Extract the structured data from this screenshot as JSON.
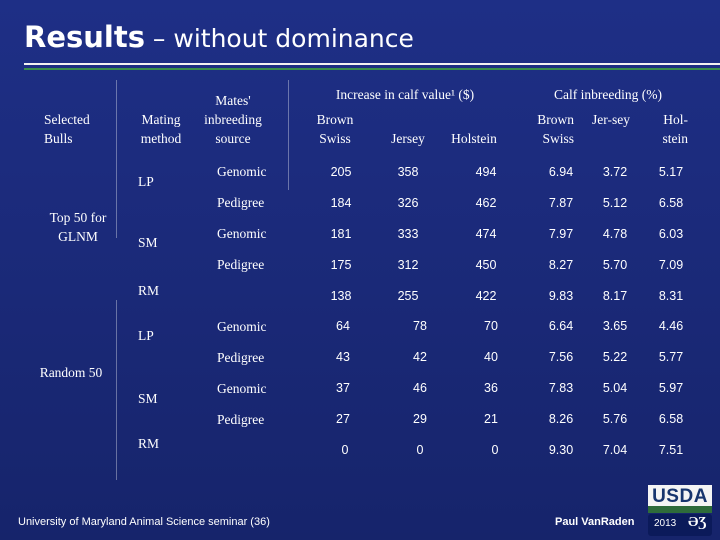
{
  "title": {
    "main": "Results",
    "sub": " – without dominance"
  },
  "headers": {
    "selected_bulls": "Selected Bulls",
    "mating_method": "Mating method",
    "mates_inbreeding": "Mates' inbreeding source",
    "increase_calf_value": "Increase in calf value¹ ($)",
    "calf_inbreeding": "Calf inbreeding (%)",
    "value_breeds": [
      "Brown Swiss",
      "Jersey",
      "Holstein"
    ],
    "inbreeding_breeds": [
      "Brown Swiss",
      "Jer-sey",
      "Hol-stein"
    ]
  },
  "groups": [
    {
      "label": "Top 50 for GLNM",
      "rows": [
        {
          "method": "LP",
          "source": "Genomic",
          "value": [
            205,
            358,
            494
          ],
          "inbreeding": [
            "6.94",
            "3.72",
            "5.17"
          ]
        },
        {
          "method": "",
          "source": "Pedigree",
          "value": [
            184,
            326,
            462
          ],
          "inbreeding": [
            "7.87",
            "5.12",
            "6.58"
          ]
        },
        {
          "method": "SM",
          "source": "Genomic",
          "value": [
            181,
            333,
            474
          ],
          "inbreeding": [
            "7.97",
            "4.78",
            "6.03"
          ]
        },
        {
          "method": "",
          "source": "Pedigree",
          "value": [
            175,
            312,
            450
          ],
          "inbreeding": [
            "8.27",
            "5.70",
            "7.09"
          ]
        },
        {
          "method": "RM",
          "source": "",
          "value": [
            138,
            255,
            422
          ],
          "inbreeding": [
            "9.83",
            "8.17",
            "8.31"
          ]
        }
      ]
    },
    {
      "label": "Random 50",
      "rows": [
        {
          "method": "LP",
          "source": "Genomic",
          "value": [
            64,
            78,
            70
          ],
          "inbreeding": [
            "6.64",
            "3.65",
            "4.46"
          ]
        },
        {
          "method": "",
          "source": "Pedigree",
          "value": [
            43,
            42,
            40
          ],
          "inbreeding": [
            "7.56",
            "5.22",
            "5.77"
          ]
        },
        {
          "method": "SM",
          "source": "Genomic",
          "value": [
            37,
            46,
            36
          ],
          "inbreeding": [
            "7.83",
            "5.04",
            "5.97"
          ]
        },
        {
          "method": "",
          "source": "Pedigree",
          "value": [
            27,
            29,
            21
          ],
          "inbreeding": [
            "8.26",
            "5.76",
            "6.58"
          ]
        },
        {
          "method": "RM",
          "source": "",
          "value": [
            0,
            0,
            0
          ],
          "inbreeding": [
            "9.30",
            "7.04",
            "7.51"
          ]
        }
      ]
    }
  ],
  "footer": {
    "left": "University of Maryland Animal Science seminar (36)",
    "right": "Paul VanRaden"
  },
  "logo": {
    "usda": "USDA",
    "year": "2013",
    "mark": "ƏƷ"
  }
}
